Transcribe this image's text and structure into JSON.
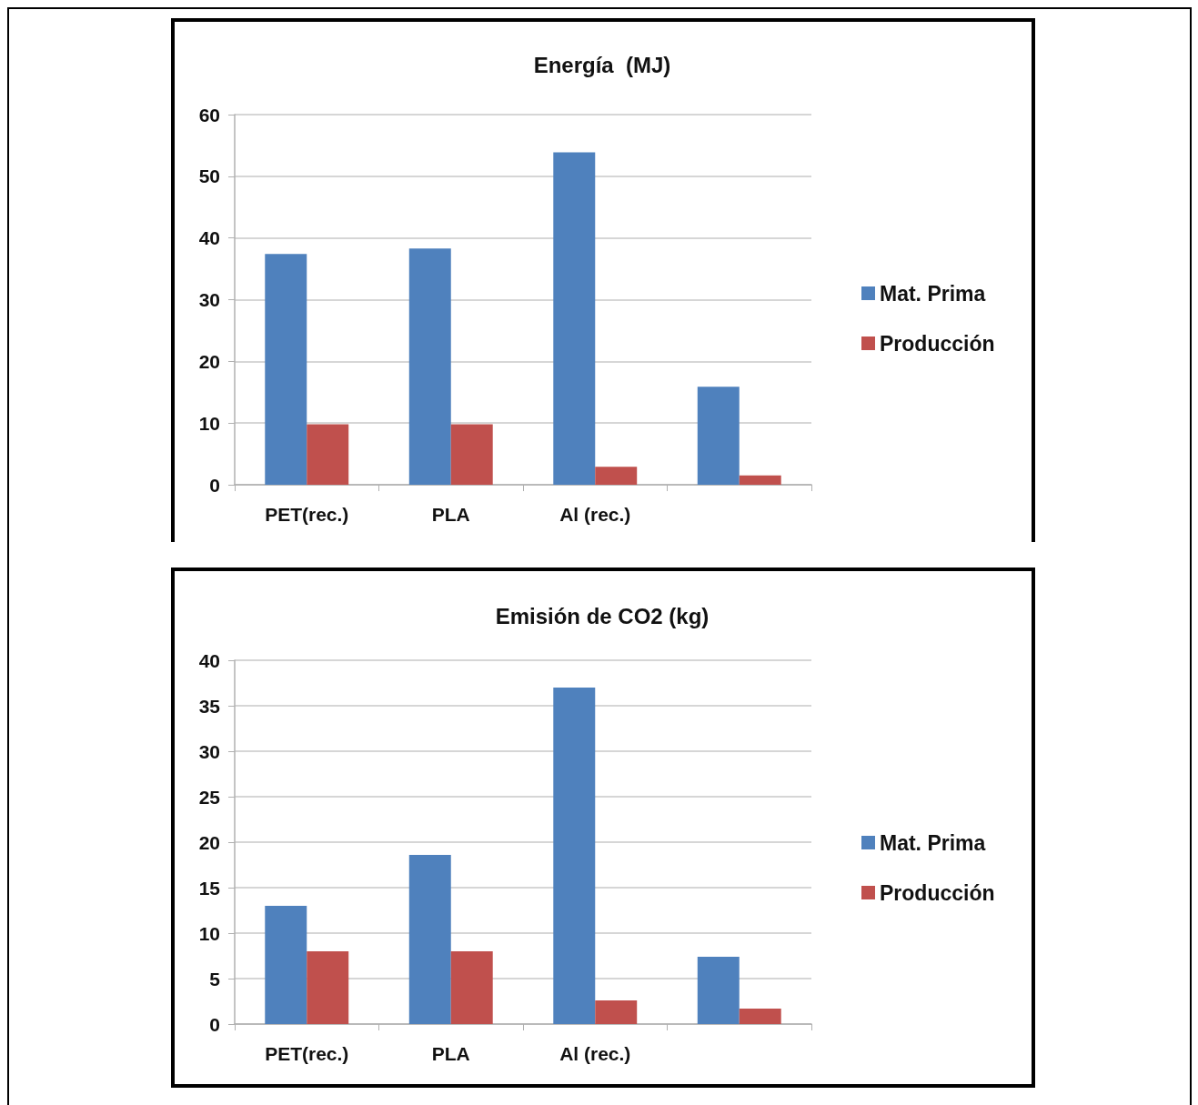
{
  "chart_data": [
    {
      "type": "bar",
      "title": "Energía  (MJ)",
      "categories": [
        "PET(rec.)",
        "PLA",
        "Al (rec.)",
        null
      ],
      "series": [
        {
          "name": "Mat. Prima",
          "color": "#4f81bd",
          "values": [
            37.4,
            38.3,
            53.9,
            15.9
          ]
        },
        {
          "name": "Producción",
          "color": "#c0504d",
          "values": [
            9.8,
            9.8,
            2.9,
            1.5
          ]
        }
      ],
      "ylim": [
        0,
        60
      ],
      "yticks": [
        0,
        10,
        20,
        30,
        40,
        50,
        60
      ],
      "grid": "y",
      "legend": "right"
    },
    {
      "type": "bar",
      "title": "Emisión de CO2 (kg)",
      "categories": [
        "PET(rec.)",
        "PLA",
        "Al (rec.)",
        null
      ],
      "series": [
        {
          "name": "Mat. Prima",
          "color": "#4f81bd",
          "values": [
            13,
            18.6,
            37,
            7.4
          ]
        },
        {
          "name": "Producción",
          "color": "#c0504d",
          "values": [
            8,
            8,
            2.6,
            1.7
          ]
        }
      ],
      "ylim": [
        0,
        40
      ],
      "yticks": [
        0,
        5,
        10,
        15,
        20,
        25,
        30,
        35,
        40
      ],
      "grid": "y",
      "legend": "right"
    }
  ]
}
